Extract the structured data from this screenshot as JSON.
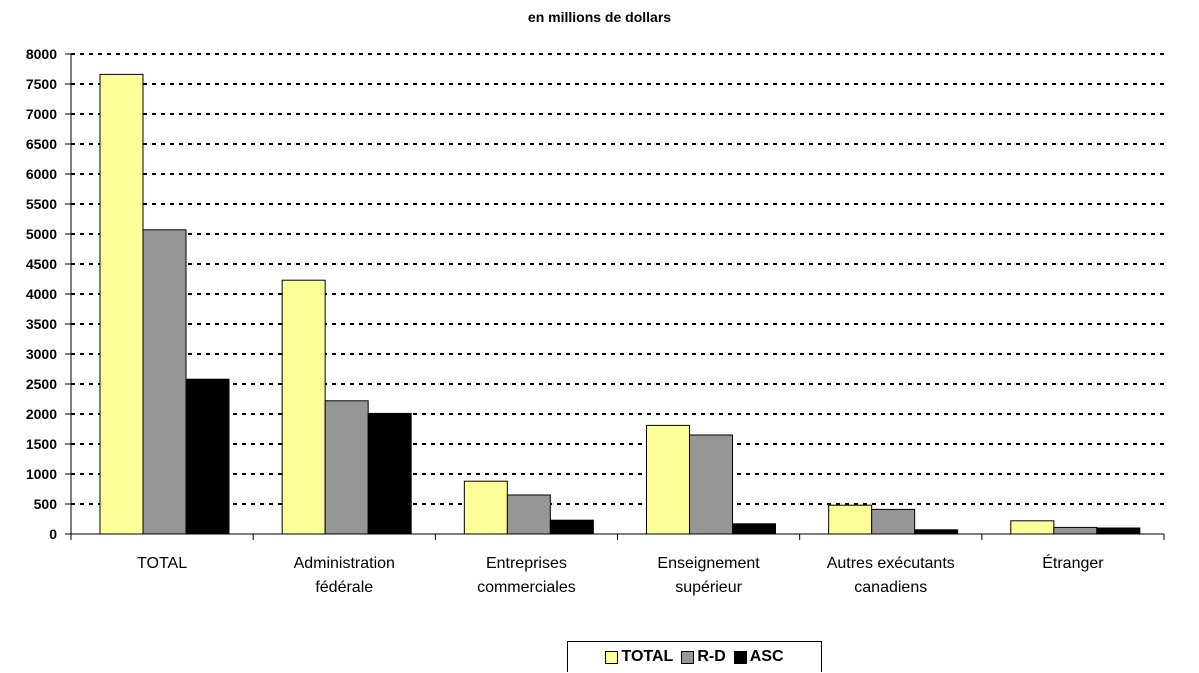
{
  "chart_data": {
    "type": "bar",
    "title": "en millions de dollars",
    "xlabel": "",
    "ylabel": "",
    "categories": [
      [
        "TOTAL"
      ],
      [
        "Administration",
        "fédérale"
      ],
      [
        "Entreprises",
        "commerciales"
      ],
      [
        "Enseignement",
        "supérieur"
      ],
      [
        "Autres exécutants",
        "canadiens"
      ],
      [
        "Étranger"
      ]
    ],
    "series": [
      {
        "name": "TOTAL",
        "color": "#ffff99",
        "values": [
          7660,
          4230,
          880,
          1810,
          480,
          220
        ]
      },
      {
        "name": "R-D",
        "color": "#969696",
        "values": [
          5070,
          2220,
          650,
          1650,
          410,
          110
        ]
      },
      {
        "name": "ASC",
        "color": "#000000",
        "values": [
          2580,
          2010,
          230,
          170,
          70,
          100
        ]
      }
    ],
    "ylim": [
      0,
      8000
    ],
    "yticks": [
      0,
      500,
      1000,
      1500,
      2000,
      2500,
      3000,
      3500,
      4000,
      4500,
      5000,
      5500,
      6000,
      6500,
      7000,
      7500,
      8000
    ],
    "grid": true,
    "legend_position": "bottom"
  }
}
